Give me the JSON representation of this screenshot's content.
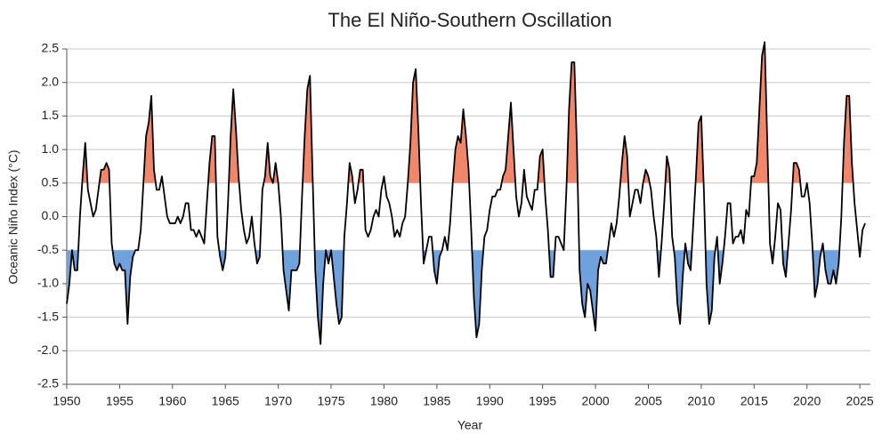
{
  "chart_data": {
    "type": "line",
    "title": "The El Niño-Southern Oscillation",
    "x_label": "Year",
    "y_label": "Oceanic Niño Index (°C)",
    "xlim": [
      1950,
      2026
    ],
    "xticks": [
      1950,
      1955,
      1960,
      1965,
      1970,
      1975,
      1980,
      1985,
      1990,
      1995,
      2000,
      2005,
      2010,
      2015,
      2020,
      2025
    ],
    "ylim": [
      -2.5,
      2.5
    ],
    "yticks": [
      2.5,
      {
        "value": 2,
        "label": "2.0"
      },
      1.5,
      {
        "value": 1,
        "label": "1.0"
      },
      0.5,
      {
        "value": 0,
        "label": "0.0"
      },
      -0.5,
      {
        "value": -1,
        "label": "-1.0"
      },
      -1.5,
      {
        "value": -2,
        "label": "-2.0"
      },
      -2.5
    ],
    "grid": true,
    "thresholds": [
      {
        "value": 0.5,
        "color": "#f0866a",
        "side": "above"
      },
      {
        "value": -0.5,
        "color": "#6fa2dc",
        "side": "below"
      }
    ],
    "series": [
      {
        "color": "#000000",
        "x": [
          1950,
          1950.25,
          1950.5,
          1950.75,
          1951,
          1951.25,
          1951.5,
          1951.75,
          1952,
          1952.25,
          1952.5,
          1952.75,
          1953,
          1953.25,
          1953.5,
          1953.75,
          1954,
          1954.25,
          1954.5,
          1954.75,
          1955,
          1955.25,
          1955.5,
          1955.75,
          1956,
          1956.25,
          1956.5,
          1956.75,
          1957,
          1957.25,
          1957.5,
          1957.75,
          1958,
          1958.25,
          1958.5,
          1958.75,
          1959,
          1959.25,
          1959.5,
          1959.75,
          1960,
          1960.25,
          1960.5,
          1960.75,
          1961,
          1961.25,
          1961.5,
          1961.75,
          1962,
          1962.25,
          1962.5,
          1962.75,
          1963,
          1963.25,
          1963.5,
          1963.75,
          1964,
          1964.25,
          1964.5,
          1964.75,
          1965,
          1965.25,
          1965.5,
          1965.75,
          1966,
          1966.25,
          1966.5,
          1966.75,
          1967,
          1967.25,
          1967.5,
          1967.75,
          1968,
          1968.25,
          1968.5,
          1968.75,
          1969,
          1969.25,
          1969.5,
          1969.75,
          1970,
          1970.25,
          1970.5,
          1970.75,
          1971,
          1971.25,
          1971.5,
          1971.75,
          1972,
          1972.25,
          1972.5,
          1972.75,
          1973,
          1973.25,
          1973.5,
          1973.75,
          1974,
          1974.25,
          1974.5,
          1974.75,
          1975,
          1975.25,
          1975.5,
          1975.75,
          1976,
          1976.25,
          1976.5,
          1976.75,
          1977,
          1977.25,
          1977.5,
          1977.75,
          1978,
          1978.25,
          1978.5,
          1978.75,
          1979,
          1979.25,
          1979.5,
          1979.75,
          1980,
          1980.25,
          1980.5,
          1980.75,
          1981,
          1981.25,
          1981.5,
          1981.75,
          1982,
          1982.25,
          1982.5,
          1982.75,
          1983,
          1983.25,
          1983.5,
          1983.75,
          1984,
          1984.25,
          1984.5,
          1984.75,
          1985,
          1985.25,
          1985.5,
          1985.75,
          1986,
          1986.25,
          1986.5,
          1986.75,
          1987,
          1987.25,
          1987.5,
          1987.75,
          1988,
          1988.25,
          1988.5,
          1988.75,
          1989,
          1989.25,
          1989.5,
          1989.75,
          1990,
          1990.25,
          1990.5,
          1990.75,
          1991,
          1991.25,
          1991.5,
          1991.75,
          1992,
          1992.25,
          1992.5,
          1992.75,
          1993,
          1993.25,
          1993.5,
          1993.75,
          1994,
          1994.25,
          1994.5,
          1994.75,
          1995,
          1995.25,
          1995.5,
          1995.75,
          1996,
          1996.25,
          1996.5,
          1996.75,
          1997,
          1997.25,
          1997.5,
          1997.75,
          1998,
          1998.25,
          1998.5,
          1998.75,
          1999,
          1999.25,
          1999.5,
          1999.75,
          2000,
          2000.25,
          2000.5,
          2000.75,
          2001,
          2001.25,
          2001.5,
          2001.75,
          2002,
          2002.25,
          2002.5,
          2002.75,
          2003,
          2003.25,
          2003.5,
          2003.75,
          2004,
          2004.25,
          2004.5,
          2004.75,
          2005,
          2005.25,
          2005.5,
          2005.75,
          2006,
          2006.25,
          2006.5,
          2006.75,
          2007,
          2007.25,
          2007.5,
          2007.75,
          2008,
          2008.25,
          2008.5,
          2008.75,
          2009,
          2009.25,
          2009.5,
          2009.75,
          2010,
          2010.25,
          2010.5,
          2010.75,
          2011,
          2011.25,
          2011.5,
          2011.75,
          2012,
          2012.25,
          2012.5,
          2012.75,
          2013,
          2013.25,
          2013.5,
          2013.75,
          2014,
          2014.25,
          2014.5,
          2014.75,
          2015,
          2015.25,
          2015.5,
          2015.75,
          2016,
          2016.25,
          2016.5,
          2016.75,
          2017,
          2017.25,
          2017.5,
          2017.75,
          2018,
          2018.25,
          2018.5,
          2018.75,
          2019,
          2019.25,
          2019.5,
          2019.75,
          2020,
          2020.25,
          2020.5,
          2020.75,
          2021,
          2021.25,
          2021.5,
          2021.75,
          2022,
          2022.25,
          2022.5,
          2022.75,
          2023,
          2023.25,
          2023.5,
          2023.75,
          2024,
          2024.25,
          2024.5,
          2024.75,
          2025,
          2025.25,
          2025.5
        ],
        "values": [
          -1.3,
          -1.0,
          -0.5,
          -0.8,
          -0.8,
          0.0,
          0.6,
          1.1,
          0.4,
          0.2,
          0.0,
          0.1,
          0.4,
          0.7,
          0.7,
          0.8,
          0.7,
          -0.4,
          -0.7,
          -0.8,
          -0.7,
          -0.8,
          -0.8,
          -1.6,
          -0.9,
          -0.6,
          -0.5,
          -0.5,
          -0.2,
          0.5,
          1.2,
          1.4,
          1.8,
          0.7,
          0.4,
          0.4,
          0.6,
          0.3,
          0.0,
          -0.1,
          -0.1,
          -0.1,
          0.0,
          -0.1,
          0.0,
          0.2,
          0.2,
          -0.2,
          -0.2,
          -0.3,
          -0.2,
          -0.3,
          -0.4,
          0.2,
          0.8,
          1.2,
          1.2,
          -0.3,
          -0.6,
          -0.8,
          -0.6,
          0.2,
          1.2,
          1.9,
          1.3,
          0.6,
          0.1,
          -0.2,
          -0.4,
          -0.3,
          0.0,
          -0.4,
          -0.7,
          -0.6,
          0.4,
          0.6,
          1.1,
          0.6,
          0.5,
          0.8,
          0.5,
          0.0,
          -0.8,
          -1.1,
          -1.4,
          -0.8,
          -0.8,
          -0.8,
          -0.7,
          0.3,
          1.2,
          1.9,
          2.1,
          0.6,
          -0.8,
          -1.5,
          -1.9,
          -1.0,
          -0.5,
          -0.7,
          -0.5,
          -0.9,
          -1.3,
          -1.6,
          -1.5,
          -0.3,
          0.2,
          0.8,
          0.6,
          0.2,
          0.4,
          0.7,
          0.7,
          -0.2,
          -0.3,
          -0.2,
          0.0,
          0.1,
          0.0,
          0.4,
          0.6,
          0.3,
          0.2,
          0.0,
          -0.3,
          -0.2,
          -0.3,
          -0.1,
          0.0,
          0.5,
          1.1,
          2.0,
          2.2,
          1.3,
          0.2,
          -0.7,
          -0.5,
          -0.3,
          -0.3,
          -0.8,
          -1.0,
          -0.6,
          -0.5,
          -0.3,
          -0.5,
          -0.1,
          0.5,
          1.0,
          1.2,
          1.1,
          1.6,
          1.2,
          0.7,
          -0.2,
          -1.2,
          -1.8,
          -1.6,
          -0.8,
          -0.3,
          -0.2,
          0.1,
          0.3,
          0.3,
          0.4,
          0.4,
          0.6,
          0.7,
          1.2,
          1.7,
          1.0,
          0.3,
          0.0,
          0.2,
          0.7,
          0.3,
          0.2,
          0.1,
          0.4,
          0.4,
          0.9,
          1.0,
          0.3,
          -0.2,
          -0.9,
          -0.9,
          -0.3,
          -0.3,
          -0.4,
          -0.5,
          0.4,
          1.6,
          2.3,
          2.3,
          1.0,
          -0.8,
          -1.3,
          -1.5,
          -1.0,
          -1.1,
          -1.4,
          -1.7,
          -0.8,
          -0.6,
          -0.7,
          -0.7,
          -0.4,
          -0.1,
          -0.3,
          -0.1,
          0.3,
          0.8,
          1.2,
          0.9,
          0.0,
          0.2,
          0.4,
          0.4,
          0.2,
          0.5,
          0.7,
          0.6,
          0.4,
          0.0,
          -0.3,
          -0.9,
          -0.4,
          0.2,
          0.9,
          0.7,
          -0.3,
          -0.6,
          -1.3,
          -1.6,
          -0.9,
          -0.4,
          -0.7,
          -0.8,
          -0.1,
          0.6,
          1.4,
          1.5,
          0.4,
          -1.0,
          -1.6,
          -1.4,
          -0.6,
          -0.3,
          -1.0,
          -0.7,
          -0.3,
          0.2,
          0.2,
          -0.4,
          -0.3,
          -0.3,
          -0.2,
          -0.4,
          0.1,
          0.0,
          0.6,
          0.6,
          0.8,
          1.6,
          2.4,
          2.6,
          1.1,
          -0.4,
          -0.7,
          -0.3,
          0.2,
          0.1,
          -0.7,
          -0.9,
          -0.4,
          0.1,
          0.8,
          0.8,
          0.7,
          0.3,
          0.3,
          0.5,
          0.2,
          -0.4,
          -1.2,
          -1.0,
          -0.6,
          -0.4,
          -0.8,
          -1.0,
          -1.0,
          -0.8,
          -1.0,
          -0.7,
          0.0,
          1.1,
          1.8,
          1.8,
          0.8,
          0.2,
          -0.2,
          -0.6,
          -0.2,
          -0.1
        ]
      }
    ]
  }
}
